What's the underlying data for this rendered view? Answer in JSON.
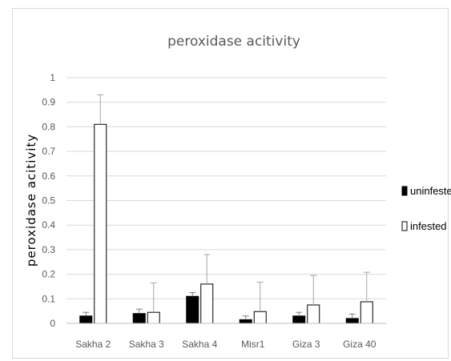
{
  "chart_data": {
    "type": "bar",
    "title": "peroxidase acitivity",
    "ylabel": "peroxidase acitivity",
    "xlabel": "",
    "categories": [
      "Sakha 2",
      "Sakha 3",
      "Sakha 4",
      "Misr1",
      "Giza 3",
      "Giza 40"
    ],
    "series": [
      {
        "name": "uninfested",
        "color": "#000000",
        "values": [
          0.03,
          0.04,
          0.11,
          0.015,
          0.03,
          0.02
        ],
        "errors": [
          0.015,
          0.018,
          0.015,
          0.015,
          0.015,
          0.018
        ]
      },
      {
        "name": "infested",
        "color": "#ffffff",
        "values": [
          0.81,
          0.045,
          0.16,
          0.048,
          0.075,
          0.088
        ],
        "errors": [
          0.12,
          0.12,
          0.12,
          0.12,
          0.12,
          0.12
        ]
      }
    ],
    "ylim": [
      0,
      1
    ],
    "yticks": [
      "0",
      "0.1",
      "0.2",
      "0.3",
      "0.4",
      "0.5",
      "0.6",
      "0.7",
      "0.8",
      "0.9",
      "1"
    ],
    "grid": true,
    "legend_position": "right"
  }
}
